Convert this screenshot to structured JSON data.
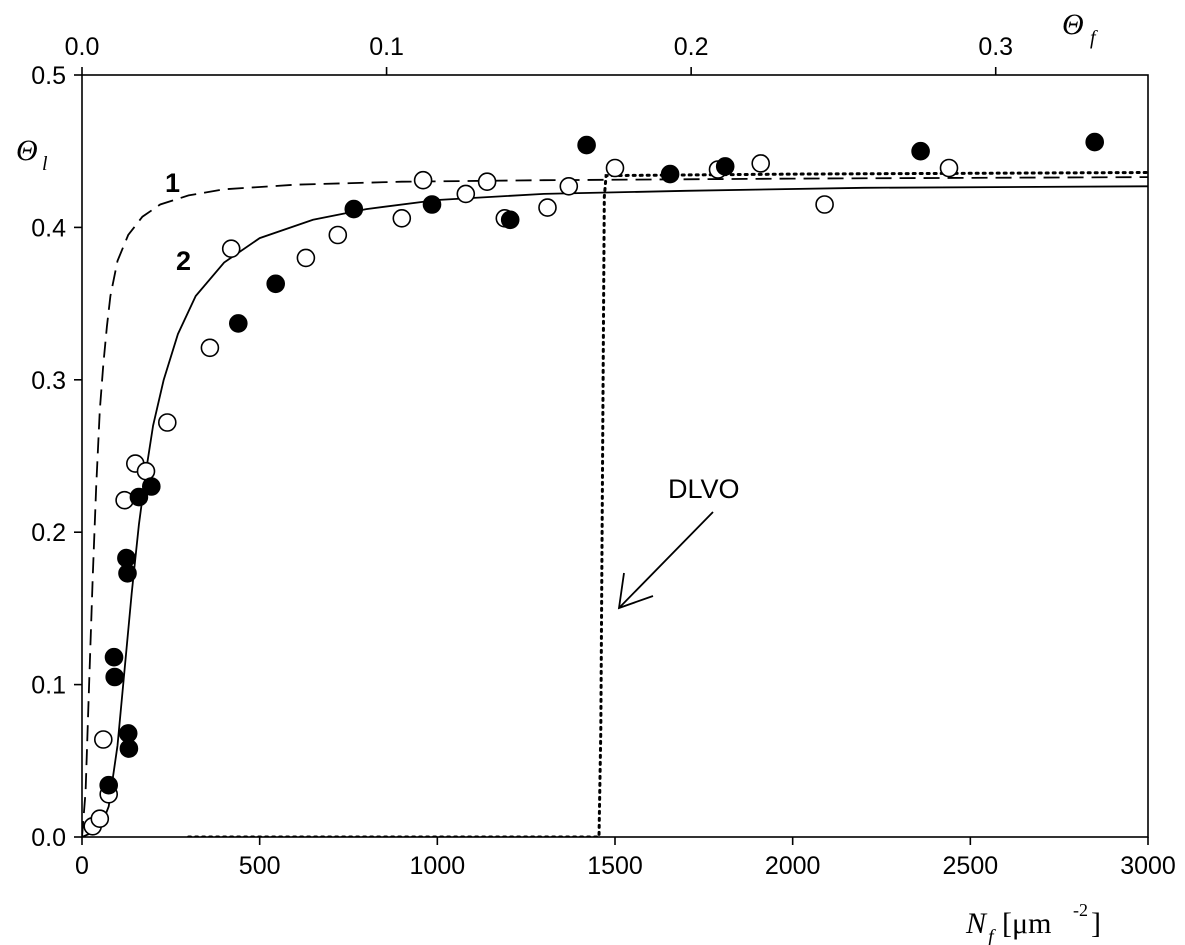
{
  "chart_data": {
    "type": "scatter",
    "title": "",
    "xlabel": {
      "symbol": "N",
      "subscript": "f",
      "unit": "[μm",
      "unit_exp": "-2",
      "unit_close": "]"
    },
    "ylabel": {
      "symbol": "Θ",
      "subscript": "l"
    },
    "x2label": {
      "symbol": "Θ",
      "subscript": "f"
    },
    "xlim": [
      0,
      3000
    ],
    "ylim": [
      0,
      0.5
    ],
    "x2lim": [
      0,
      0.35
    ],
    "xticks": [
      0,
      500,
      1000,
      1500,
      2000,
      2500,
      3000
    ],
    "xtick_labels": [
      "0",
      "500",
      "1000",
      "1500",
      "2000",
      "2500",
      "3000"
    ],
    "yticks": [
      0,
      0.1,
      0.2,
      0.3,
      0.4,
      0.5
    ],
    "ytick_labels": [
      "0.0",
      "0.1",
      "0.2",
      "0.3",
      "0.4",
      "0.5"
    ],
    "x2ticks": [
      0,
      0.1,
      0.2,
      0.3
    ],
    "x2tick_labels": [
      "0.0",
      "0.1",
      "0.2",
      "0.3"
    ],
    "grid": false,
    "annotations": {
      "curve1": "1",
      "curve2": "2",
      "dlvo": "DLVO"
    },
    "series": [
      {
        "style": "open-circles",
        "points": [
          [
            30,
            0.007
          ],
          [
            50,
            0.012
          ],
          [
            60,
            0.064
          ],
          [
            75,
            0.028
          ],
          [
            120,
            0.221
          ],
          [
            150,
            0.245
          ],
          [
            180,
            0.24
          ],
          [
            240,
            0.272
          ],
          [
            360,
            0.321
          ],
          [
            420,
            0.386
          ],
          [
            630,
            0.38
          ],
          [
            720,
            0.395
          ],
          [
            900,
            0.406
          ],
          [
            960,
            0.431
          ],
          [
            1080,
            0.422
          ],
          [
            1140,
            0.43
          ],
          [
            1190,
            0.406
          ],
          [
            1310,
            0.413
          ],
          [
            1370,
            0.427
          ],
          [
            1500,
            0.439
          ],
          [
            1790,
            0.438
          ],
          [
            1910,
            0.442
          ],
          [
            2090,
            0.415
          ],
          [
            2440,
            0.439
          ]
        ]
      },
      {
        "style": "filled-circles",
        "points": [
          [
            75,
            0.034
          ],
          [
            90,
            0.118
          ],
          [
            92,
            0.105
          ],
          [
            125,
            0.183
          ],
          [
            128,
            0.173
          ],
          [
            130,
            0.068
          ],
          [
            132,
            0.058
          ],
          [
            160,
            0.223
          ],
          [
            195,
            0.23
          ],
          [
            440,
            0.337
          ],
          [
            545,
            0.363
          ],
          [
            765,
            0.412
          ],
          [
            985,
            0.415
          ],
          [
            1205,
            0.405
          ],
          [
            1420,
            0.454
          ],
          [
            1655,
            0.435
          ],
          [
            1810,
            0.44
          ],
          [
            2360,
            0.45
          ],
          [
            2850,
            0.456
          ]
        ]
      },
      {
        "style": "dashed-line",
        "label": "1",
        "points": [
          [
            0,
            0
          ],
          [
            10,
            0.03
          ],
          [
            20,
            0.1
          ],
          [
            30,
            0.17
          ],
          [
            40,
            0.23
          ],
          [
            50,
            0.28
          ],
          [
            60,
            0.31
          ],
          [
            70,
            0.335
          ],
          [
            80,
            0.355
          ],
          [
            100,
            0.378
          ],
          [
            130,
            0.395
          ],
          [
            170,
            0.407
          ],
          [
            220,
            0.415
          ],
          [
            300,
            0.421
          ],
          [
            400,
            0.425
          ],
          [
            600,
            0.428
          ],
          [
            900,
            0.43
          ],
          [
            1300,
            0.431
          ],
          [
            2000,
            0.432
          ],
          [
            3000,
            0.433
          ]
        ]
      },
      {
        "style": "solid-line",
        "label": "2",
        "points": [
          [
            0,
            0
          ],
          [
            50,
            0.005
          ],
          [
            75,
            0.02
          ],
          [
            100,
            0.06
          ],
          [
            120,
            0.11
          ],
          [
            140,
            0.16
          ],
          [
            160,
            0.205
          ],
          [
            180,
            0.24
          ],
          [
            200,
            0.27
          ],
          [
            230,
            0.3
          ],
          [
            270,
            0.33
          ],
          [
            320,
            0.355
          ],
          [
            400,
            0.377
          ],
          [
            500,
            0.393
          ],
          [
            650,
            0.405
          ],
          [
            800,
            0.412
          ],
          [
            1000,
            0.418
          ],
          [
            1300,
            0.422
          ],
          [
            1700,
            0.424
          ],
          [
            2200,
            0.426
          ],
          [
            3000,
            0.427
          ]
        ]
      },
      {
        "style": "dotted-line",
        "label": "DLVO",
        "points": [
          [
            300,
            0
          ],
          [
            1455,
            0
          ],
          [
            1460,
            0.07
          ],
          [
            1465,
            0.25
          ],
          [
            1470,
            0.42
          ],
          [
            1475,
            0.434
          ],
          [
            2000,
            0.435
          ],
          [
            3000,
            0.436
          ]
        ]
      }
    ]
  }
}
